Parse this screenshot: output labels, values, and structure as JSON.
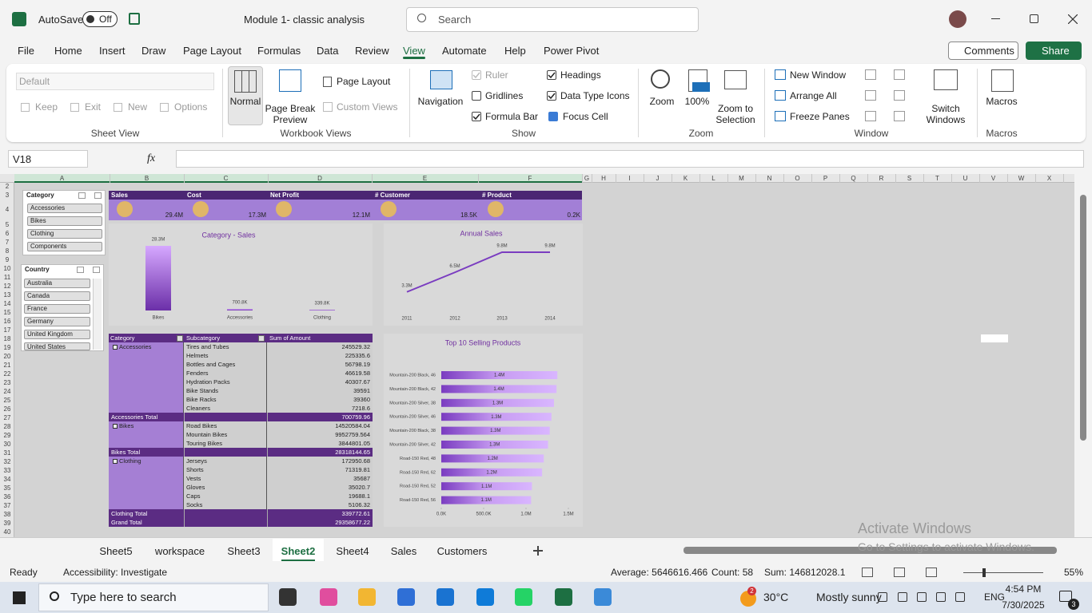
{
  "titlebar": {
    "autosave": "AutoSave",
    "toggle": "Off",
    "filename": "Module 1- classic analysis",
    "search": "Search"
  },
  "menu": [
    "File",
    "Home",
    "Insert",
    "Draw",
    "Page Layout",
    "Formulas",
    "Data",
    "Review",
    "View",
    "Automate",
    "Help",
    "Power Pivot"
  ],
  "buttons": {
    "comments": "Comments",
    "share": "Share"
  },
  "ribbon": {
    "sheet_view": {
      "label": "Sheet View",
      "dropdown": "Default",
      "items": [
        "Keep",
        "Exit",
        "New",
        "Options"
      ]
    },
    "workbook_views": {
      "label": "Workbook Views",
      "items": [
        "Normal",
        "Page Break Preview",
        "Page Layout",
        "Custom Views"
      ]
    },
    "show": {
      "label": "Show",
      "navigation": "Navigation",
      "checks": [
        {
          "text": "Ruler",
          "checked": true
        },
        {
          "text": "Gridlines",
          "checked": false
        },
        {
          "text": "Formula Bar",
          "checked": true
        },
        {
          "text": "Headings",
          "checked": true
        },
        {
          "text": "Data Type Icons",
          "checked": true
        }
      ],
      "focus_cell": "Focus Cell"
    },
    "zoom": {
      "label": "Zoom",
      "items": [
        "Zoom",
        "100%",
        "Zoom to Selection"
      ]
    },
    "window": {
      "label": "Window",
      "items": [
        "New Window",
        "Arrange All",
        "Freeze Panes",
        "Switch Windows"
      ]
    },
    "macros": {
      "label": "Macros",
      "items": [
        "Macros"
      ]
    }
  },
  "formula_bar": {
    "name_box": "V18",
    "fx": "fx"
  },
  "columns": [
    "A",
    "B",
    "C",
    "D",
    "E",
    "F",
    "G",
    "H",
    "I",
    "J",
    "K",
    "L",
    "M",
    "N",
    "O",
    "P",
    "Q",
    "R",
    "S",
    "T",
    "U",
    "V",
    "W",
    "X"
  ],
  "rows": [
    2,
    3,
    4,
    5,
    6,
    7,
    8,
    9,
    10,
    11,
    12,
    13,
    14,
    15,
    16,
    17,
    18,
    19,
    20,
    21,
    22,
    23,
    24,
    25,
    26,
    27,
    28,
    29,
    30,
    31,
    32,
    33,
    34,
    35,
    36,
    37,
    38,
    39,
    40
  ],
  "kpis": [
    {
      "label": "Sales",
      "value": "29.4M"
    },
    {
      "label": "Cost",
      "value": "17.3M"
    },
    {
      "label": "Net Profit",
      "value": "12.1M"
    },
    {
      "label": "# Customer",
      "value": "18.5K"
    },
    {
      "label": "# Product",
      "value": "0.2K"
    }
  ],
  "slicers": [
    {
      "title": "Category",
      "items": [
        "Accessories",
        "Bikes",
        "Clothing",
        "Components"
      ]
    },
    {
      "title": "Country",
      "items": [
        "Australia",
        "Canada",
        "France",
        "Germany",
        "United Kingdom",
        "United States"
      ]
    }
  ],
  "category_chart": {
    "type": "bar",
    "title": "Category - Sales",
    "categories": [
      "Bikes",
      "Accessories",
      "Clothing"
    ],
    "values": [
      28300000,
      700800,
      339800
    ],
    "value_labels": [
      "28.3M",
      "700.8K",
      "339.8K"
    ]
  },
  "annual_chart": {
    "type": "line",
    "title": "Annual Sales",
    "categories": [
      "2011",
      "2012",
      "2013",
      "2014"
    ],
    "values": [
      3300000,
      6500000,
      9800000,
      9800000
    ],
    "value_labels": [
      "3.3M",
      "6.5M",
      "9.8M",
      "9.8M"
    ]
  },
  "top10": {
    "type": "bar",
    "title": "Top 10 Selling Products",
    "categories": [
      "Mountain-200 Black, 46",
      "Mountain-200 Black, 42",
      "Mountain-200 Silver, 38",
      "Mountain-200 Silver, 46",
      "Mountain-200 Black, 38",
      "Mountain-200 Silver, 42",
      "Road-150 Red, 48",
      "Road-150 Red, 62",
      "Road-150 Red, 52",
      "Road-150 Red, 56"
    ],
    "values": [
      1370000,
      1360000,
      1330000,
      1300000,
      1280000,
      1260000,
      1210000,
      1190000,
      1070000,
      1060000
    ],
    "value_labels": [
      "1.4M",
      "1.4M",
      "1.3M",
      "1.3M",
      "1.3M",
      "1.3M",
      "1.2M",
      "1.2M",
      "1.1M",
      "1.1M"
    ],
    "xlim": [
      0,
      1500000
    ],
    "xticks": [
      {
        "value": 0,
        "label": "0.0K"
      },
      {
        "value": 500000,
        "label": "500.0K"
      },
      {
        "value": 1000000,
        "label": "1.0M"
      },
      {
        "value": 1500000,
        "label": "1.5M"
      }
    ]
  },
  "pivot": {
    "headers": [
      "Category",
      "Subcategory",
      "Sum of Amount"
    ],
    "groups": [
      {
        "category": "Accessories",
        "rows": [
          [
            "Tires and Tubes",
            245529.32
          ],
          [
            "Helmets",
            225335.6
          ],
          [
            "Bottles and Cages",
            56798.19
          ],
          [
            "Fenders",
            46619.58
          ],
          [
            "Hydration Packs",
            40307.67
          ],
          [
            "Bike Stands",
            39591
          ],
          [
            "Bike Racks",
            39360
          ],
          [
            "Cleaners",
            7218.6
          ]
        ],
        "total_label": "Accessories Total",
        "total": 700759.96
      },
      {
        "category": "Bikes",
        "rows": [
          [
            "Road Bikes",
            14520584.04
          ],
          [
            "Mountain Bikes",
            9952759.564
          ],
          [
            "Touring Bikes",
            3844801.05
          ]
        ],
        "total_label": "Bikes Total",
        "total": 28318144.65
      },
      {
        "category": "Clothing",
        "rows": [
          [
            "Jerseys",
            172950.68
          ],
          [
            "Shorts",
            71319.81
          ],
          [
            "Vests",
            35687
          ],
          [
            "Gloves",
            35020.7
          ],
          [
            "Caps",
            19688.1
          ],
          [
            "Socks",
            5106.32
          ]
        ],
        "total_label": "Clothing Total",
        "total": 339772.61
      }
    ],
    "grand_total_label": "Grand Total",
    "grand_total": 29358677.22
  },
  "sheet_tabs": [
    "Sheet5",
    "workspace",
    "Sheet3",
    "Sheet2",
    "Sheet4",
    "Sales",
    "Customers"
  ],
  "status": {
    "ready": "Ready",
    "accessibility": "Accessibility: Investigate",
    "average": "Average: 5646616.466",
    "count": "Count: 58",
    "sum": "Sum: 146812028.1",
    "zoom": "55%"
  },
  "watermark": {
    "title": "Activate Windows",
    "subtitle": "Go to Settings to activate Windows."
  },
  "taskbar": {
    "search": "Type here to search",
    "weather_badge": "2",
    "temp": "30°C",
    "weather": "Mostly sunny",
    "lang": "ENG",
    "time": "4:54 PM",
    "date": "7/30/2025",
    "notifications": "3"
  }
}
